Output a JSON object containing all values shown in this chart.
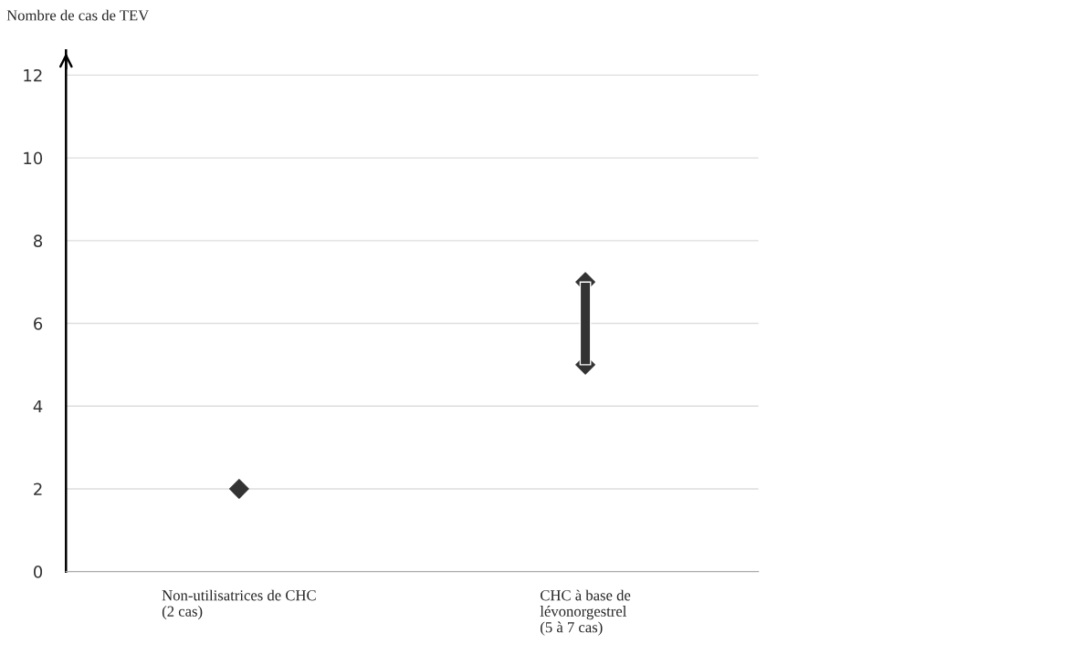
{
  "chart_data": {
    "type": "scatter",
    "ylabel": "Nombre de cas de TEV",
    "categories": [
      "Non-utilisatrices de CHC\n(2 cas)",
      "CHC à base de\nlévonorgestrel\n(5 à 7 cas)"
    ],
    "series": [
      {
        "type": "bar",
        "color": "#333333",
        "base": [
          null,
          5
        ],
        "values": [
          null,
          2
        ]
      },
      {
        "color": "#333333",
        "values": [
          2,
          5
        ]
      },
      {
        "color": "#333333",
        "values": [
          null,
          7
        ]
      }
    ],
    "ylim": [
      0,
      12.6
    ],
    "yticks": [
      0,
      2,
      4,
      6,
      8,
      10,
      12
    ],
    "grid": "y",
    "marker": "diamond",
    "legend": false
  }
}
